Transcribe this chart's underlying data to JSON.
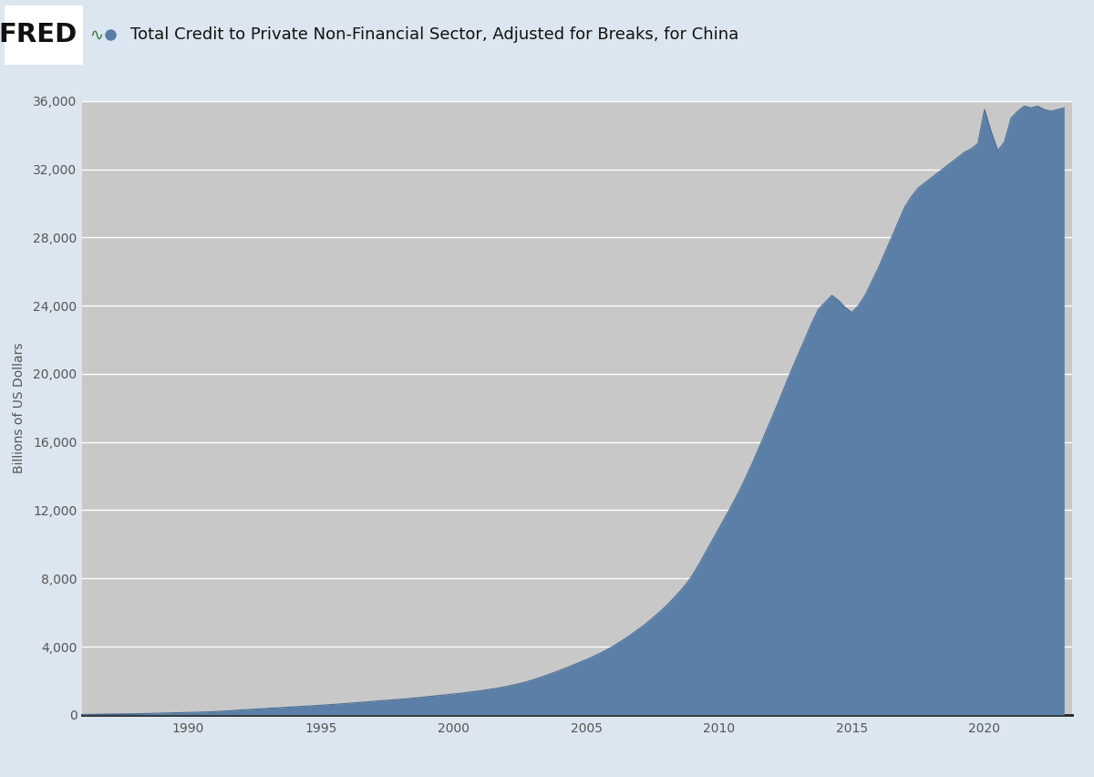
{
  "title": "Total Credit to Private Non-Financial Sector, Adjusted for Breaks, for China",
  "ylabel": "Billions of US Dollars",
  "fill_color": "#5b7fa6",
  "fill_edge_color": "#4a6d94",
  "outer_bg_color": "#dce6f0",
  "plot_bg_color": "#c8c8c8",
  "grid_color": "#ffffff",
  "ylim": [
    0,
    36000
  ],
  "yticks": [
    0,
    4000,
    8000,
    12000,
    16000,
    20000,
    24000,
    28000,
    32000,
    36000
  ],
  "xlabel_years": [
    1990,
    1995,
    2000,
    2005,
    2010,
    2015,
    2020
  ],
  "years": [
    1986.0,
    1986.25,
    1986.5,
    1986.75,
    1987.0,
    1987.25,
    1987.5,
    1987.75,
    1988.0,
    1988.25,
    1988.5,
    1988.75,
    1989.0,
    1989.25,
    1989.5,
    1989.75,
    1990.0,
    1990.25,
    1990.5,
    1990.75,
    1991.0,
    1991.25,
    1991.5,
    1991.75,
    1992.0,
    1992.25,
    1992.5,
    1992.75,
    1993.0,
    1993.25,
    1993.5,
    1993.75,
    1994.0,
    1994.25,
    1994.5,
    1994.75,
    1995.0,
    1995.25,
    1995.5,
    1995.75,
    1996.0,
    1996.25,
    1996.5,
    1996.75,
    1997.0,
    1997.25,
    1997.5,
    1997.75,
    1998.0,
    1998.25,
    1998.5,
    1998.75,
    1999.0,
    1999.25,
    1999.5,
    1999.75,
    2000.0,
    2000.25,
    2000.5,
    2000.75,
    2001.0,
    2001.25,
    2001.5,
    2001.75,
    2002.0,
    2002.25,
    2002.5,
    2002.75,
    2003.0,
    2003.25,
    2003.5,
    2003.75,
    2004.0,
    2004.25,
    2004.5,
    2004.75,
    2005.0,
    2005.25,
    2005.5,
    2005.75,
    2006.0,
    2006.25,
    2006.5,
    2006.75,
    2007.0,
    2007.25,
    2007.5,
    2007.75,
    2008.0,
    2008.25,
    2008.5,
    2008.75,
    2009.0,
    2009.25,
    2009.5,
    2009.75,
    2010.0,
    2010.25,
    2010.5,
    2010.75,
    2011.0,
    2011.25,
    2011.5,
    2011.75,
    2012.0,
    2012.25,
    2012.5,
    2012.75,
    2013.0,
    2013.25,
    2013.5,
    2013.75,
    2014.0,
    2014.25,
    2014.5,
    2014.75,
    2015.0,
    2015.25,
    2015.5,
    2015.75,
    2016.0,
    2016.25,
    2016.5,
    2016.75,
    2017.0,
    2017.25,
    2017.5,
    2017.75,
    2018.0,
    2018.25,
    2018.5,
    2018.75,
    2019.0,
    2019.25,
    2019.5,
    2019.75,
    2020.0,
    2020.25,
    2020.5,
    2020.75,
    2021.0,
    2021.25,
    2021.5,
    2021.75,
    2022.0,
    2022.25,
    2022.5,
    2022.75,
    2023.0
  ],
  "values": [
    20,
    25,
    30,
    35,
    40,
    45,
    50,
    55,
    60,
    70,
    80,
    90,
    100,
    110,
    120,
    130,
    140,
    150,
    160,
    170,
    190,
    210,
    230,
    260,
    290,
    310,
    330,
    355,
    380,
    400,
    420,
    445,
    470,
    490,
    510,
    535,
    560,
    590,
    615,
    640,
    670,
    700,
    730,
    760,
    790,
    820,
    850,
    880,
    910,
    945,
    980,
    1020,
    1060,
    1100,
    1140,
    1180,
    1220,
    1265,
    1310,
    1360,
    1410,
    1470,
    1530,
    1590,
    1670,
    1750,
    1840,
    1940,
    2060,
    2190,
    2320,
    2460,
    2610,
    2760,
    2920,
    3080,
    3240,
    3410,
    3600,
    3800,
    4020,
    4260,
    4510,
    4780,
    5060,
    5360,
    5680,
    6020,
    6380,
    6780,
    7200,
    7650,
    8200,
    8850,
    9550,
    10250,
    10950,
    11650,
    12350,
    13100,
    13900,
    14750,
    15650,
    16550,
    17450,
    18400,
    19350,
    20300,
    21200,
    22100,
    23000,
    23800,
    24200,
    24600,
    24300,
    23900,
    23600,
    24000,
    24600,
    25400,
    26200,
    27100,
    28000,
    28900,
    29800,
    30400,
    30900,
    31200,
    31500,
    31800,
    32100,
    32400,
    32700,
    33000,
    33200,
    33500,
    35500,
    34200,
    33100,
    33600,
    35000,
    35400,
    35700,
    35600,
    35700,
    35500,
    35400,
    35500,
    35600
  ],
  "title_fontsize": 13,
  "ylabel_fontsize": 10,
  "tick_fontsize": 10
}
